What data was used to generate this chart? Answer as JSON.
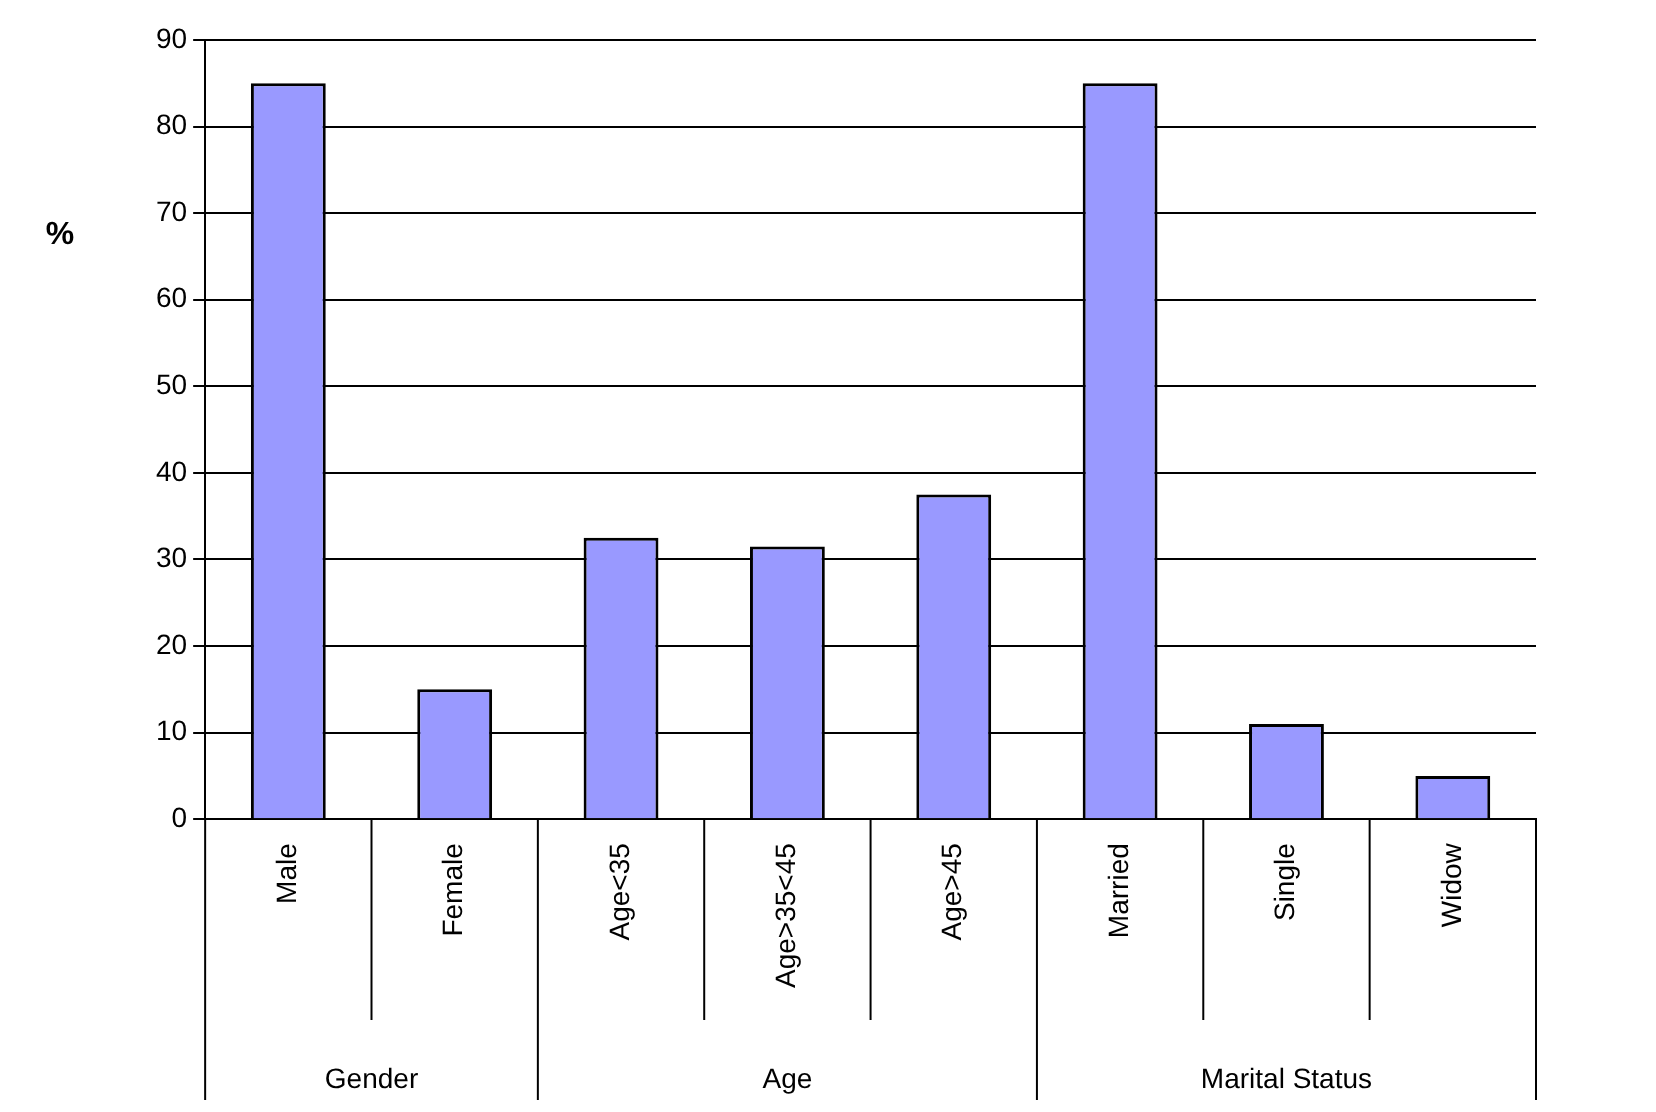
{
  "chart_data": {
    "type": "bar",
    "ylabel": "%",
    "categories": [
      "Male",
      "Female",
      "Age<35",
      "Age>35<45",
      "Age>45",
      "Married",
      "Single",
      "Widow"
    ],
    "values": [
      85,
      15,
      32.5,
      31.5,
      37.5,
      85,
      11,
      5
    ],
    "color": "#9999ff",
    "ylim": [
      0,
      90
    ],
    "yticks": [
      0,
      10,
      20,
      30,
      40,
      50,
      60,
      70,
      80,
      90
    ],
    "grid": "y",
    "legend": false,
    "annotations": [
      "Gender",
      "Age",
      "Marital Status"
    ]
  }
}
